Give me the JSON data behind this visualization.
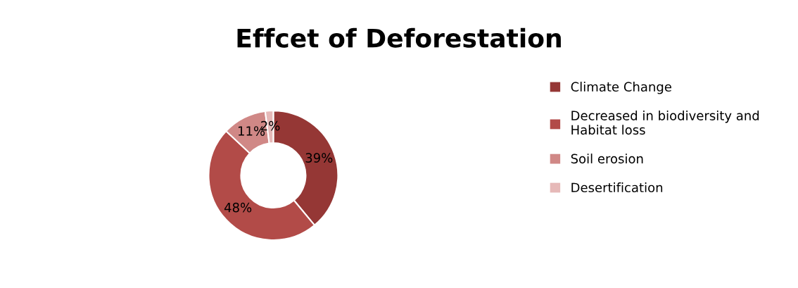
{
  "chart_data": {
    "type": "donut",
    "title": "Effcet of Deforestation",
    "categories": [
      "Climate Change",
      "Decreased in biodiversity and\nHabitat loss",
      "Soil erosion",
      "Desertification"
    ],
    "values": [
      39,
      48,
      11,
      2
    ],
    "colors": [
      "#953735",
      "#b24b48",
      "#d08886",
      "#e6b9b8"
    ],
    "value_labels": [
      "39%",
      "48%",
      "11%",
      "2%"
    ],
    "legend": "right"
  }
}
